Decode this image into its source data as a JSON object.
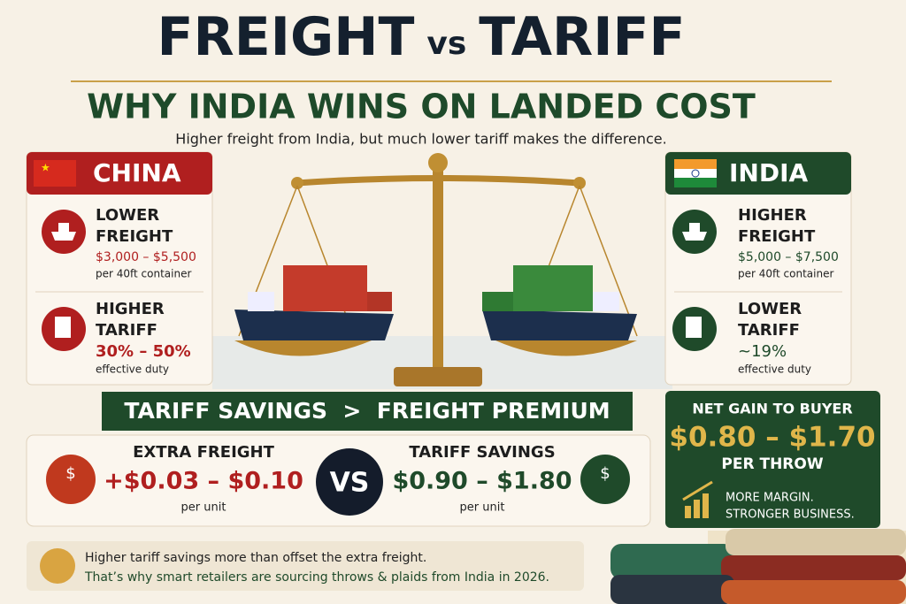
{
  "header": {
    "title": {
      "left": "FREIGHT",
      "middle": "vs",
      "right": "TARIFF"
    },
    "subtitle": "WHY INDIA WINS ON LANDED COST",
    "tagline": "Higher freight from India, but much lower tariff makes the difference."
  },
  "china": {
    "name": "CHINA",
    "items": [
      {
        "heading": [
          "LOWER",
          "FREIGHT"
        ],
        "value": "$3,000 – $5,500",
        "note": "per 40ft container"
      },
      {
        "heading": [
          "HIGHER",
          "TARIFF"
        ],
        "value": "30% – 50%",
        "note": "effective duty"
      }
    ]
  },
  "india": {
    "name": "INDIA",
    "items": [
      {
        "heading": [
          "HIGHER",
          "FREIGHT"
        ],
        "value": "$5,000 – $7,500",
        "note": "per 40ft container"
      },
      {
        "heading": [
          "LOWER",
          "TARIFF"
        ],
        "value": "~19%",
        "note": "effective duty"
      }
    ]
  },
  "banner": "TARIFF SAVINGS  >  FREIGHT PREMIUM",
  "comparison": {
    "left": {
      "label": "EXTRA FREIGHT",
      "value": "+$0.03 – $0.10",
      "note": "per unit"
    },
    "vs": "VS",
    "right": {
      "label": "TARIFF SAVINGS",
      "value": "$0.90 – $1.80",
      "note": "per unit"
    }
  },
  "net_gain": {
    "label": "NET GAIN TO BUYER",
    "value": "$0.80 – $1.70",
    "unit": "PER THROW",
    "lines": [
      "MORE MARGIN.",
      "STRONGER BUSINESS."
    ]
  },
  "footer": {
    "lines": [
      "Higher tariff savings more than offset the extra freight.",
      "That’s why smart retailers are sourcing throws & plaids from India in 2026."
    ]
  }
}
